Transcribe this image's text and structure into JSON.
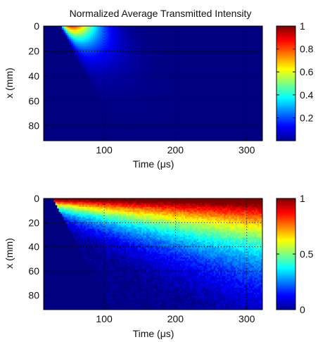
{
  "chart_data": [
    {
      "type": "heatmap",
      "title": "Normalized Average Transmitted Intensity",
      "xlabel": "Time (μs)",
      "ylabel": "x (mm)",
      "xlim": [
        15,
        322
      ],
      "ylim": [
        0,
        92
      ],
      "y_reversed": true,
      "xticks": [
        100,
        200,
        300
      ],
      "yticks": [
        0,
        20,
        40,
        60,
        80
      ],
      "grid": true,
      "colormap": "jet",
      "colorbar": {
        "range": [
          0,
          1
        ],
        "ticks": [
          0.2,
          0.4,
          0.6,
          0.8,
          1
        ]
      },
      "pattern": "localized peak near x=0, t≈70 μs, decaying by ≈150 μs"
    },
    {
      "type": "heatmap",
      "title": "",
      "xlabel": "Time (μs)",
      "ylabel": "x (mm)",
      "xlim": [
        15,
        322
      ],
      "ylim": [
        0,
        92
      ],
      "y_reversed": true,
      "xticks": [
        100,
        200,
        300
      ],
      "yticks": [
        0,
        20,
        40,
        60,
        80
      ],
      "grid": true,
      "colormap": "jet",
      "colorbar": {
        "range": [
          0,
          1
        ],
        "ticks": [
          0,
          0.5,
          1
        ]
      },
      "pattern": "front starting near t≈30 μs, saturating with time, deeper x lower"
    }
  ]
}
